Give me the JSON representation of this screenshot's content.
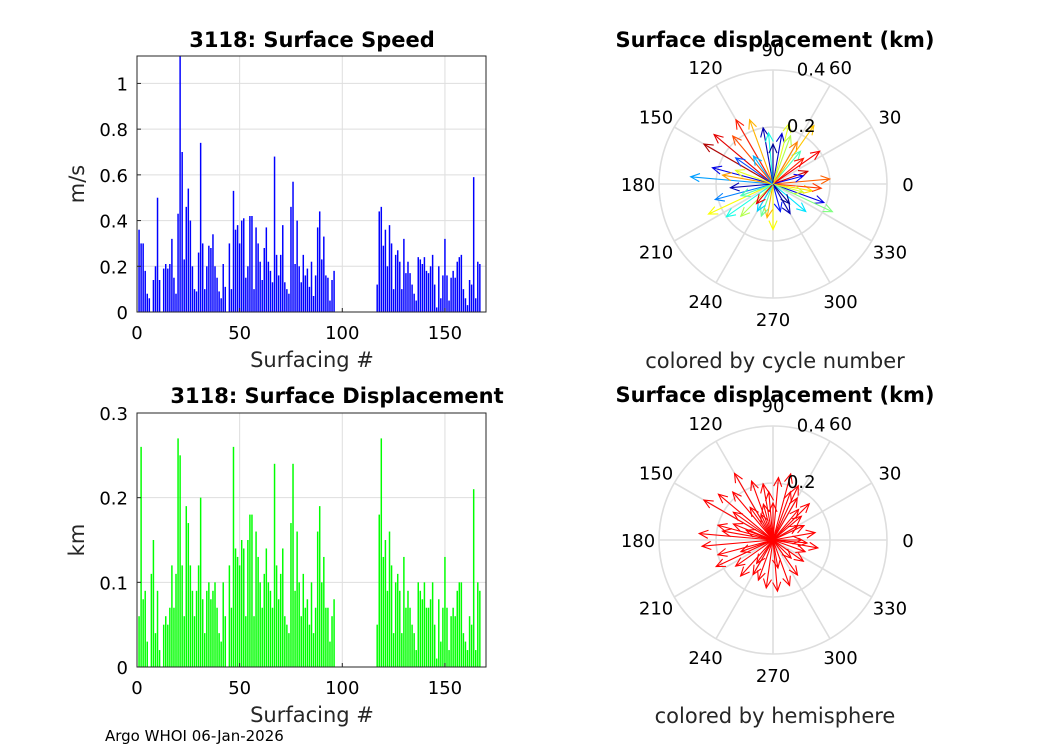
{
  "footer": "Argo WHOI 06-Jan-2026",
  "chart_data": [
    {
      "type": "bar",
      "title": "3118: Surface Speed",
      "xlabel": "Surfacing #",
      "ylabel": "m/s",
      "xlim": [
        0,
        170
      ],
      "ylim": [
        0,
        1.12
      ],
      "xticks": [
        0,
        50,
        100,
        150
      ],
      "yticks": [
        0,
        0.2,
        0.4,
        0.6,
        0.8,
        1
      ],
      "ytick_labels": [
        "0",
        "0.2",
        "0.4",
        "0.6",
        "0.8",
        "1"
      ],
      "color": "#0000ff",
      "values": [
        0.36,
        0.3,
        0.3,
        0.18,
        0.08,
        0.06,
        0.0,
        0.14,
        0.2,
        0.5,
        0.14,
        0.0,
        0.19,
        0.21,
        0.19,
        0.21,
        0.32,
        0.15,
        0.08,
        0.43,
        1.12,
        0.7,
        0.23,
        0.46,
        0.54,
        0.4,
        0.2,
        0.1,
        0.09,
        0.26,
        0.74,
        0.3,
        0.1,
        0.2,
        0.29,
        0.28,
        0.34,
        0.2,
        0.15,
        0.09,
        0.06,
        0.21,
        0.11,
        0.0,
        0.3,
        0.1,
        0.53,
        0.36,
        0.38,
        0.3,
        0.4,
        0.41,
        0.15,
        0.2,
        0.42,
        0.42,
        0.1,
        0.37,
        0.3,
        0.22,
        0.14,
        0.28,
        0.37,
        0.22,
        0.18,
        0.13,
        0.68,
        0.25,
        0.16,
        0.25,
        0.38,
        0.13,
        0.1,
        0.08,
        0.46,
        0.57,
        0.21,
        0.4,
        0.2,
        0.13,
        0.25,
        0.16,
        0.19,
        0.11,
        0.22,
        0.07,
        0.16,
        0.37,
        0.44,
        0.23,
        0.33,
        0.16,
        0.15,
        0.05,
        0.14,
        0.18,
        0.0,
        0.0,
        0.0,
        0.0,
        0.0,
        0.0,
        0.0,
        0.0,
        0.0,
        0.0,
        0.0,
        0.0,
        0.0,
        0.0,
        0.0,
        0.0,
        0.0,
        0.0,
        0.0,
        0.0,
        0.12,
        0.44,
        0.46,
        0.29,
        0.36,
        0.2,
        0.38,
        0.3,
        0.1,
        0.25,
        0.27,
        0.22,
        0.1,
        0.32,
        0.17,
        0.22,
        0.17,
        0.12,
        0.08,
        0.05,
        0.24,
        0.23,
        0.21,
        0.24,
        0.18,
        0.17,
        0.2,
        0.25,
        0.12,
        0.02,
        0.2,
        0.06,
        0.16,
        0.32,
        0.16,
        0.05,
        0.15,
        0.18,
        0.15,
        0.22,
        0.24,
        0.25,
        0.1,
        0.06,
        0.03,
        0.14,
        0.12,
        0.59,
        0.06,
        0.22,
        0.21
      ]
    },
    {
      "type": "bar",
      "title": "3118: Surface Displacement",
      "xlabel": "Surfacing #",
      "ylabel": "km",
      "xlim": [
        0,
        170
      ],
      "ylim": [
        0,
        0.3
      ],
      "xticks": [
        0,
        50,
        100,
        150
      ],
      "yticks": [
        0,
        0.1,
        0.2,
        0.3
      ],
      "ytick_labels": [
        "0",
        "0.1",
        "0.2",
        "0.3"
      ],
      "color": "#00ff00",
      "values": [
        0.06,
        0.26,
        0.08,
        0.09,
        0.03,
        0.0,
        0.11,
        0.15,
        0.04,
        0.09,
        0.02,
        0.0,
        0.05,
        0.06,
        0.05,
        0.07,
        0.12,
        0.07,
        0.11,
        0.27,
        0.25,
        0.12,
        0.06,
        0.19,
        0.17,
        0.12,
        0.09,
        0.06,
        0.09,
        0.12,
        0.2,
        0.08,
        0.04,
        0.09,
        0.1,
        0.08,
        0.09,
        0.1,
        0.07,
        0.04,
        0.03,
        0.1,
        0.06,
        0.0,
        0.12,
        0.07,
        0.26,
        0.14,
        0.13,
        0.12,
        0.15,
        0.14,
        0.06,
        0.15,
        0.18,
        0.18,
        0.06,
        0.16,
        0.13,
        0.1,
        0.07,
        0.11,
        0.14,
        0.1,
        0.09,
        0.07,
        0.24,
        0.12,
        0.08,
        0.11,
        0.14,
        0.06,
        0.05,
        0.04,
        0.17,
        0.24,
        0.09,
        0.16,
        0.1,
        0.06,
        0.11,
        0.07,
        0.08,
        0.05,
        0.1,
        0.04,
        0.07,
        0.16,
        0.19,
        0.1,
        0.13,
        0.07,
        0.07,
        0.03,
        0.06,
        0.08,
        0.0,
        0.0,
        0.0,
        0.0,
        0.0,
        0.0,
        0.0,
        0.0,
        0.0,
        0.0,
        0.0,
        0.0,
        0.0,
        0.0,
        0.0,
        0.0,
        0.0,
        0.0,
        0.0,
        0.0,
        0.05,
        0.18,
        0.27,
        0.13,
        0.15,
        0.09,
        0.16,
        0.12,
        0.04,
        0.1,
        0.11,
        0.09,
        0.04,
        0.13,
        0.07,
        0.09,
        0.07,
        0.05,
        0.04,
        0.02,
        0.1,
        0.09,
        0.08,
        0.1,
        0.07,
        0.07,
        0.08,
        0.1,
        0.05,
        0.01,
        0.08,
        0.03,
        0.07,
        0.13,
        0.07,
        0.02,
        0.06,
        0.07,
        0.06,
        0.09,
        0.1,
        0.1,
        0.04,
        0.03,
        0.02,
        0.06,
        0.05,
        0.21,
        0.02,
        0.1,
        0.09
      ]
    },
    {
      "type": "polar-compass",
      "title": "Surface displacement (km)",
      "xlabel": "colored by cycle number",
      "rlim": [
        0,
        0.4
      ],
      "rticks": [
        0.2,
        0.4
      ],
      "rtick_labels": [
        "0.2",
        "0.4"
      ],
      "angle_labels": [
        "0",
        "30",
        "60",
        "90",
        "120",
        "150",
        "180",
        "210",
        "240",
        "270",
        "300",
        "330"
      ],
      "color_mode": "cycle",
      "vectors": [
        {
          "dir": 175,
          "mag": 0.29,
          "cycle": 0.28
        },
        {
          "dir": 165,
          "mag": 0.22,
          "cycle": 0.1
        },
        {
          "dir": 150,
          "mag": 0.28,
          "cycle": 0.95
        },
        {
          "dir": 140,
          "mag": 0.27,
          "cycle": 0.9
        },
        {
          "dir": 130,
          "mag": 0.22,
          "cycle": 0.8
        },
        {
          "dir": 120,
          "mag": 0.26,
          "cycle": 0.85
        },
        {
          "dir": 110,
          "mag": 0.24,
          "cycle": 0.7
        },
        {
          "dir": 100,
          "mag": 0.2,
          "cycle": 0.05
        },
        {
          "dir": 95,
          "mag": 0.18,
          "cycle": 0.4
        },
        {
          "dir": 80,
          "mag": 0.18,
          "cycle": 0.08
        },
        {
          "dir": 75,
          "mag": 0.22,
          "cycle": 0.6
        },
        {
          "dir": 70,
          "mag": 0.18,
          "cycle": 0.55
        },
        {
          "dir": 60,
          "mag": 0.17,
          "cycle": 0.75
        },
        {
          "dir": 50,
          "mag": 0.15,
          "cycle": 0.45
        },
        {
          "dir": 40,
          "mag": 0.14,
          "cycle": 0.85
        },
        {
          "dir": 20,
          "mag": 0.13,
          "cycle": 0.92
        },
        {
          "dir": 5,
          "mag": 0.2,
          "cycle": 0.78
        },
        {
          "dir": 350,
          "mag": 0.14,
          "cycle": 0.65
        },
        {
          "dir": 340,
          "mag": 0.19,
          "cycle": 0.1
        },
        {
          "dir": 335,
          "mag": 0.23,
          "cycle": 0.5
        },
        {
          "dir": 320,
          "mag": 0.15,
          "cycle": 0.35
        },
        {
          "dir": 300,
          "mag": 0.12,
          "cycle": 0.05
        },
        {
          "dir": 285,
          "mag": 0.1,
          "cycle": 0.15
        },
        {
          "dir": 270,
          "mag": 0.16,
          "cycle": 0.62
        },
        {
          "dir": 260,
          "mag": 0.12,
          "cycle": 0.7
        },
        {
          "dir": 250,
          "mag": 0.12,
          "cycle": 0.48
        },
        {
          "dir": 240,
          "mag": 0.11,
          "cycle": 0.33
        },
        {
          "dir": 225,
          "mag": 0.16,
          "cycle": 0.55
        },
        {
          "dir": 215,
          "mag": 0.2,
          "cycle": 0.4
        },
        {
          "dir": 205,
          "mag": 0.25,
          "cycle": 0.62
        },
        {
          "dir": 195,
          "mag": 0.21,
          "cycle": 0.25
        },
        {
          "dir": 185,
          "mag": 0.15,
          "cycle": 0.05
        },
        {
          "dir": 170,
          "mag": 0.18,
          "cycle": 0.72
        },
        {
          "dir": 160,
          "mag": 0.14,
          "cycle": 0.6
        },
        {
          "dir": 145,
          "mag": 0.16,
          "cycle": 0.2
        },
        {
          "dir": 125,
          "mag": 0.12,
          "cycle": 0.3
        },
        {
          "dir": 90,
          "mag": 0.14,
          "cycle": 0.02
        },
        {
          "dir": 35,
          "mag": 0.2,
          "cycle": 0.88
        },
        {
          "dir": 15,
          "mag": 0.11,
          "cycle": 0.12
        },
        {
          "dir": 355,
          "mag": 0.17,
          "cycle": 0.82
        },
        {
          "dir": 345,
          "mag": 0.11,
          "cycle": 0.58
        },
        {
          "dir": 310,
          "mag": 0.09,
          "cycle": 0.02
        },
        {
          "dir": 230,
          "mag": 0.09,
          "cycle": 0.9
        },
        {
          "dir": 200,
          "mag": 0.12,
          "cycle": 0.45
        },
        {
          "dir": 55,
          "mag": 0.25,
          "cycle": 0.68
        }
      ]
    },
    {
      "type": "polar-compass",
      "title": "Surface displacement (km)",
      "xlabel": "colored by hemisphere",
      "rlim": [
        0,
        0.4
      ],
      "rticks": [
        0.2,
        0.4
      ],
      "rtick_labels": [
        "0.2",
        "0.4"
      ],
      "angle_labels": [
        "0",
        "30",
        "60",
        "90",
        "120",
        "150",
        "180",
        "210",
        "240",
        "270",
        "300",
        "330"
      ],
      "color_mode": "single",
      "color": "#ff0000",
      "vectors": [
        {
          "dir": 175,
          "mag": 0.26
        },
        {
          "dir": 165,
          "mag": 0.2
        },
        {
          "dir": 150,
          "mag": 0.28
        },
        {
          "dir": 140,
          "mag": 0.25
        },
        {
          "dir": 130,
          "mag": 0.22
        },
        {
          "dir": 120,
          "mag": 0.27
        },
        {
          "dir": 110,
          "mag": 0.22
        },
        {
          "dir": 100,
          "mag": 0.2
        },
        {
          "dir": 95,
          "mag": 0.17
        },
        {
          "dir": 85,
          "mag": 0.22
        },
        {
          "dir": 75,
          "mag": 0.24
        },
        {
          "dir": 70,
          "mag": 0.18
        },
        {
          "dir": 60,
          "mag": 0.17
        },
        {
          "dir": 50,
          "mag": 0.14
        },
        {
          "dir": 40,
          "mag": 0.13
        },
        {
          "dir": 25,
          "mag": 0.12
        },
        {
          "dir": 10,
          "mag": 0.15
        },
        {
          "dir": 355,
          "mag": 0.12
        },
        {
          "dir": 340,
          "mag": 0.12
        },
        {
          "dir": 325,
          "mag": 0.13
        },
        {
          "dir": 305,
          "mag": 0.15
        },
        {
          "dir": 290,
          "mag": 0.17
        },
        {
          "dir": 275,
          "mag": 0.18
        },
        {
          "dir": 262,
          "mag": 0.17
        },
        {
          "dir": 250,
          "mag": 0.15
        },
        {
          "dir": 240,
          "mag": 0.14
        },
        {
          "dir": 228,
          "mag": 0.17
        },
        {
          "dir": 215,
          "mag": 0.16
        },
        {
          "dir": 205,
          "mag": 0.22
        },
        {
          "dir": 195,
          "mag": 0.2
        },
        {
          "dir": 185,
          "mag": 0.25
        },
        {
          "dir": 170,
          "mag": 0.18
        },
        {
          "dir": 158,
          "mag": 0.15
        },
        {
          "dir": 145,
          "mag": 0.17
        },
        {
          "dir": 125,
          "mag": 0.14
        },
        {
          "dir": 105,
          "mag": 0.13
        },
        {
          "dir": 90,
          "mag": 0.13
        },
        {
          "dir": 65,
          "mag": 0.21
        },
        {
          "dir": 45,
          "mag": 0.18
        },
        {
          "dir": 30,
          "mag": 0.1
        },
        {
          "dir": 0,
          "mag": 0.1
        },
        {
          "dir": 350,
          "mag": 0.16
        },
        {
          "dir": 315,
          "mag": 0.09
        },
        {
          "dir": 280,
          "mag": 0.1
        },
        {
          "dir": 235,
          "mag": 0.1
        },
        {
          "dir": 200,
          "mag": 0.12
        },
        {
          "dir": 160,
          "mag": 0.1
        },
        {
          "dir": 115,
          "mag": 0.1
        }
      ]
    }
  ]
}
